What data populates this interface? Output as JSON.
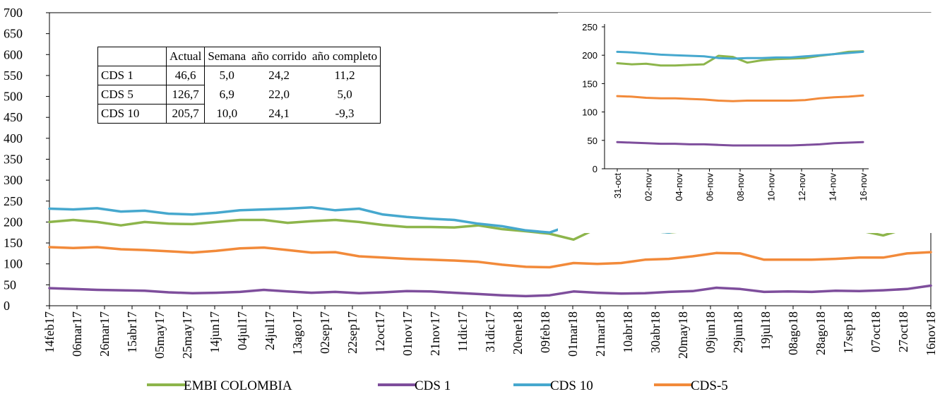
{
  "chart_data": [
    {
      "type": "line",
      "ylim": [
        0,
        700
      ],
      "yticks": [
        "0",
        "50",
        "100",
        "150",
        "200",
        "250",
        "300",
        "350",
        "400",
        "450",
        "500",
        "550",
        "600",
        "650",
        "700"
      ],
      "xticks": [
        "14feb17",
        "06mar17",
        "26mar17",
        "15abr17",
        "05may17",
        "25may17",
        "14jun17",
        "04jul17",
        "24jul17",
        "13ago17",
        "02sep17",
        "22sep17",
        "12oct17",
        "01nov17",
        "21nov17",
        "11dic17",
        "31dic17",
        "20ene18",
        "09feb18",
        "01mar18",
        "21mar18",
        "10abr18",
        "30abr18",
        "20may18",
        "09jun18",
        "29jun18",
        "19jul18",
        "08ago18",
        "28ago18",
        "17sep18",
        "07oct18",
        "27oct18",
        "16nov18"
      ],
      "grid": false,
      "legend": "bottom",
      "series": [
        {
          "name": "EMBI COLOMBIA",
          "color": "#8DB54B",
          "values": [
            200,
            205,
            200,
            192,
            200,
            196,
            195,
            200,
            205,
            205,
            198,
            202,
            205,
            200,
            193,
            188,
            188,
            187,
            192,
            183,
            178,
            172,
            158,
            185,
            182,
            180,
            175,
            180,
            195,
            205,
            200,
            185,
            188,
            190,
            180,
            168,
            185,
            200
          ]
        },
        {
          "name": "CDS 1",
          "color": "#7E4E9C",
          "values": [
            42,
            40,
            38,
            37,
            36,
            32,
            30,
            31,
            33,
            38,
            34,
            31,
            33,
            30,
            32,
            35,
            34,
            31,
            28,
            25,
            23,
            25,
            34,
            31,
            29,
            30,
            33,
            35,
            43,
            40,
            33,
            34,
            33,
            36,
            35,
            37,
            40,
            48
          ]
        },
        {
          "name": "CDS 10",
          "color": "#46A8CE",
          "values": [
            232,
            230,
            233,
            225,
            227,
            220,
            218,
            222,
            228,
            230,
            232,
            235,
            228,
            232,
            218,
            212,
            208,
            205,
            196,
            190,
            180,
            175,
            195,
            182,
            185,
            180,
            175,
            188,
            200,
            210,
            193,
            190,
            185,
            190,
            195,
            190,
            205,
            208
          ]
        },
        {
          "name": "CDS-5",
          "color": "#F28A3A",
          "values": [
            140,
            138,
            140,
            135,
            133,
            130,
            127,
            131,
            137,
            139,
            133,
            127,
            128,
            118,
            115,
            112,
            110,
            108,
            105,
            98,
            93,
            92,
            102,
            100,
            102,
            110,
            112,
            118,
            126,
            125,
            110,
            110,
            110,
            112,
            115,
            115,
            125,
            128
          ]
        }
      ]
    },
    {
      "type": "line",
      "ylim": [
        0,
        250
      ],
      "yticks": [
        "0",
        "50",
        "100",
        "150",
        "200",
        "250"
      ],
      "xticks": [
        "31-oct",
        "02-nov",
        "04-nov",
        "06-nov",
        "08-nov",
        "10-nov",
        "12-nov",
        "14-nov",
        "16-nov"
      ],
      "grid": false,
      "series": [
        {
          "name": "EMBI COLOMBIA",
          "color": "#8DB54B",
          "values": [
            186,
            184,
            185,
            182,
            182,
            183,
            184,
            199,
            197,
            187,
            191,
            193,
            194,
            195,
            199,
            202,
            206,
            207
          ]
        },
        {
          "name": "CDS 1",
          "color": "#7E4E9C",
          "values": [
            47,
            46,
            45,
            44,
            44,
            43,
            43,
            42,
            41,
            41,
            41,
            41,
            41,
            42,
            43,
            45,
            46,
            47
          ]
        },
        {
          "name": "CDS 10",
          "color": "#46A8CE",
          "values": [
            206,
            205,
            203,
            201,
            200,
            199,
            198,
            195,
            194,
            195,
            195,
            196,
            196,
            198,
            200,
            202,
            204,
            206
          ]
        },
        {
          "name": "CDS-5",
          "color": "#F28A3A",
          "values": [
            128,
            127,
            125,
            124,
            124,
            123,
            122,
            120,
            119,
            120,
            120,
            120,
            120,
            121,
            124,
            126,
            127,
            129
          ]
        }
      ]
    }
  ],
  "table": {
    "headers": [
      "",
      "Actual",
      "Semana",
      "año corrido",
      "año completo"
    ],
    "rows": [
      {
        "name": "CDS 1",
        "actual": "46,6",
        "semana": "5,0",
        "corrido": "24,2",
        "completo": "11,2"
      },
      {
        "name": "CDS 5",
        "actual": "126,7",
        "semana": "6,9",
        "corrido": "22,0",
        "completo": "5,0"
      },
      {
        "name": "CDS 10",
        "actual": "205,7",
        "semana": "10,0",
        "corrido": "24,1",
        "completo": "-9,3"
      }
    ]
  }
}
